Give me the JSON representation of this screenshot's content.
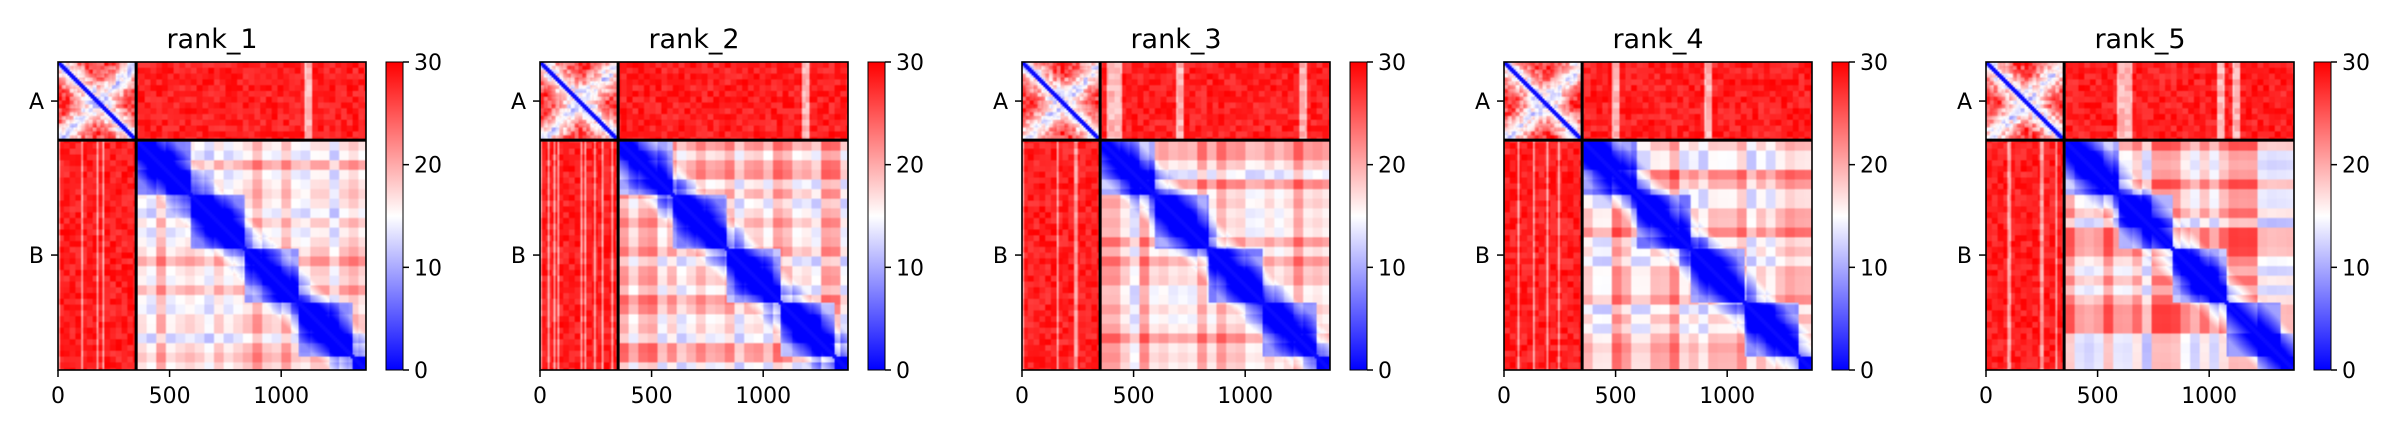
{
  "chart_data": [
    {
      "type": "heatmap",
      "title": "rank_1",
      "chains": [
        "A",
        "B"
      ],
      "chain_lengths": [
        350,
        1030
      ],
      "total_length": 1380,
      "xlim": [
        0,
        1380
      ],
      "xticks": [
        0,
        500,
        1000
      ],
      "ytick_labels": [
        "A",
        "B"
      ],
      "colorbar": {
        "vmin": 0,
        "vmax": 30,
        "ticks": [
          0,
          10,
          20,
          30
        ]
      },
      "colormap": "bwr"
    },
    {
      "type": "heatmap",
      "title": "rank_2",
      "chains": [
        "A",
        "B"
      ],
      "chain_lengths": [
        350,
        1030
      ],
      "total_length": 1380,
      "xlim": [
        0,
        1380
      ],
      "xticks": [
        0,
        500,
        1000
      ],
      "ytick_labels": [
        "A",
        "B"
      ],
      "colorbar": {
        "vmin": 0,
        "vmax": 30,
        "ticks": [
          0,
          10,
          20,
          30
        ]
      },
      "colormap": "bwr"
    },
    {
      "type": "heatmap",
      "title": "rank_3",
      "chains": [
        "A",
        "B"
      ],
      "chain_lengths": [
        350,
        1030
      ],
      "total_length": 1380,
      "xlim": [
        0,
        1380
      ],
      "xticks": [
        0,
        500,
        1000
      ],
      "ytick_labels": [
        "A",
        "B"
      ],
      "colorbar": {
        "vmin": 0,
        "vmax": 30,
        "ticks": [
          0,
          10,
          20,
          30
        ]
      },
      "colormap": "bwr"
    },
    {
      "type": "heatmap",
      "title": "rank_4",
      "chains": [
        "A",
        "B"
      ],
      "chain_lengths": [
        350,
        1030
      ],
      "total_length": 1380,
      "xlim": [
        0,
        1380
      ],
      "xticks": [
        0,
        500,
        1000
      ],
      "ytick_labels": [
        "A",
        "B"
      ],
      "colorbar": {
        "vmin": 0,
        "vmax": 30,
        "ticks": [
          0,
          10,
          20,
          30
        ]
      },
      "colormap": "bwr"
    },
    {
      "type": "heatmap",
      "title": "rank_5",
      "chains": [
        "A",
        "B"
      ],
      "chain_lengths": [
        350,
        1030
      ],
      "total_length": 1380,
      "xlim": [
        0,
        1380
      ],
      "xticks": [
        0,
        500,
        1000
      ],
      "ytick_labels": [
        "A",
        "B"
      ],
      "colorbar": {
        "vmin": 0,
        "vmax": 30,
        "ticks": [
          0,
          10,
          20,
          30
        ]
      },
      "colormap": "bwr"
    }
  ],
  "colors": {
    "low": "#0000ff",
    "mid": "#ffffff",
    "high": "#ff0000",
    "border": "#000000"
  }
}
